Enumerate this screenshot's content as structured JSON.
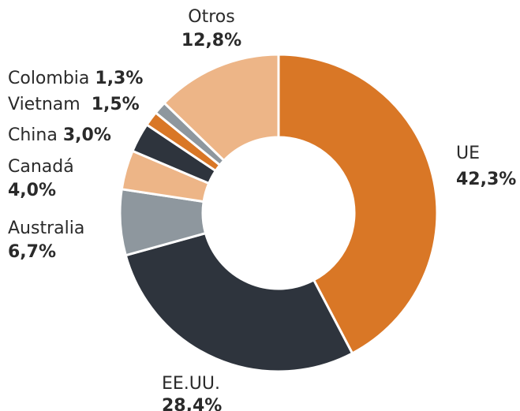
{
  "chart_data": {
    "type": "donut",
    "categories": [
      "UE",
      "EE.UU.",
      "Australia",
      "Canadá",
      "China",
      "Vietnam",
      "Colombia",
      "Otros"
    ],
    "values": [
      42.3,
      28.4,
      6.7,
      4.0,
      3.0,
      1.5,
      1.3,
      12.8
    ],
    "value_labels": [
      "42,3%",
      "28,4%",
      "6,7%",
      "4,0%",
      "3,0%",
      "1,5%",
      "1,3%",
      "12,8%"
    ],
    "colors": [
      "#d97726",
      "#2e343d",
      "#8e979e",
      "#edb587",
      "#2e343d",
      "#d97726",
      "#8e979e",
      "#edb587"
    ]
  }
}
